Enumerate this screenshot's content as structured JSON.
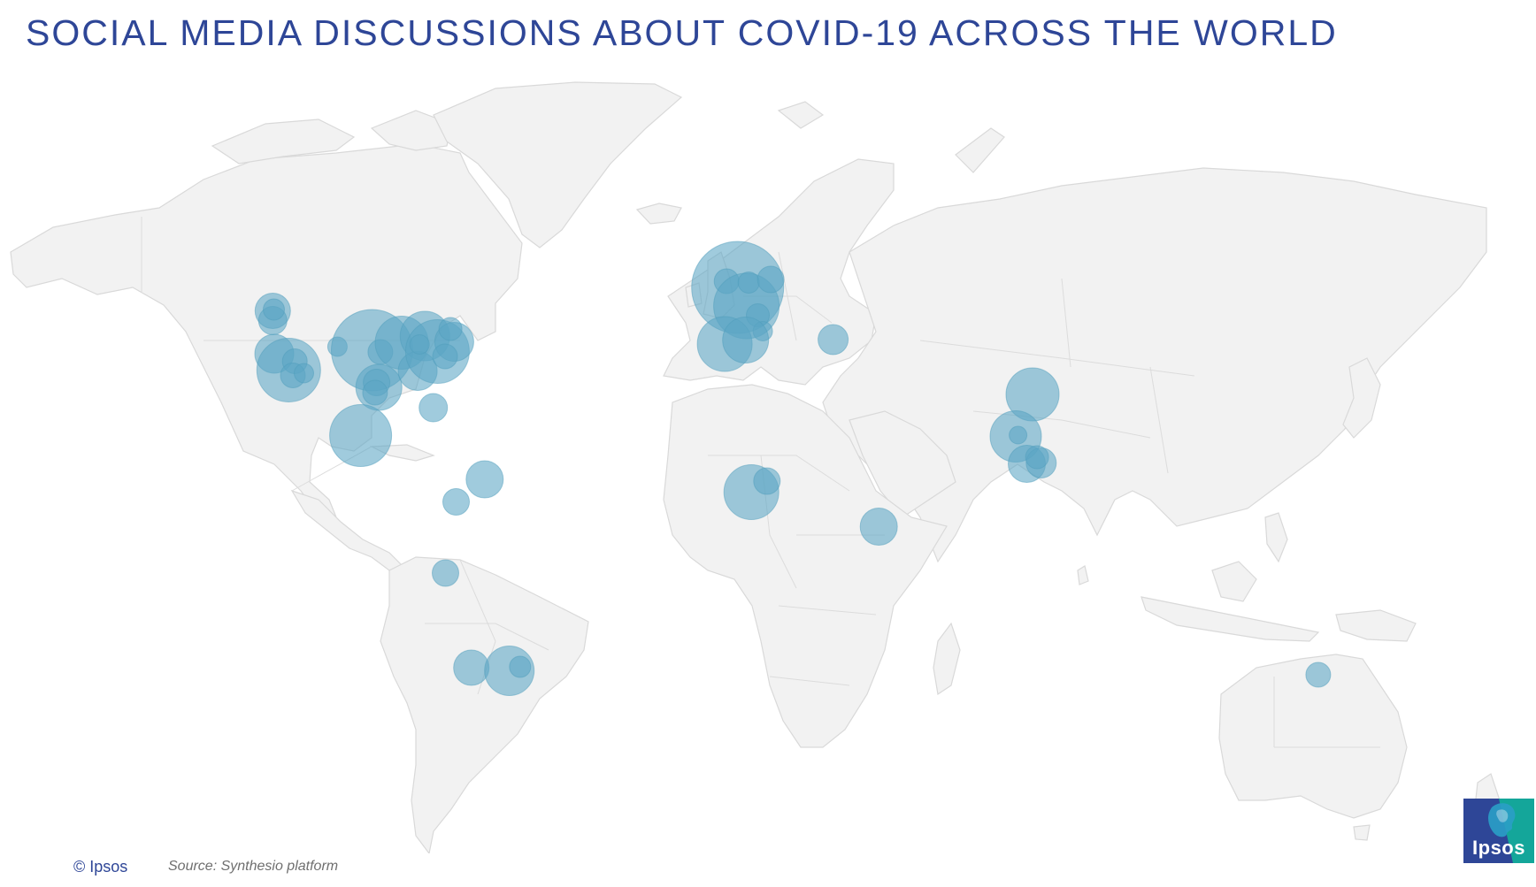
{
  "title": "SOCIAL MEDIA DISCUSSIONS ABOUT COVID-19 ACROSS THE WORLD",
  "footer": {
    "copyright": "© Ipsos",
    "source": "Source: Synthesio platform"
  },
  "logo": {
    "text": "Ipsos",
    "icon": "ipsos-head-icon"
  },
  "colors": {
    "title": "#2e4697",
    "land": "#f2f2f2",
    "bubble": "#5ba6c4",
    "logo_blue": "#2e4697",
    "logo_teal": "#14a69a"
  },
  "legend": "none",
  "bubbles": [
    {
      "region": "usa-pacific-northwest",
      "lon": -122.5,
      "lat": 47.5,
      "size": 20
    },
    {
      "region": "usa-oregon",
      "lon": -122.5,
      "lat": 45.3,
      "size": 16
    },
    {
      "region": "usa-washington",
      "lon": -122.2,
      "lat": 47.8,
      "size": 12
    },
    {
      "region": "usa-san-francisco",
      "lon": -122.1,
      "lat": 37.8,
      "size": 22
    },
    {
      "region": "usa-los-angeles",
      "lon": -118.3,
      "lat": 34.1,
      "size": 36
    },
    {
      "region": "usa-las-vegas",
      "lon": -116.7,
      "lat": 36.1,
      "size": 14
    },
    {
      "region": "usa-san-diego",
      "lon": -117.2,
      "lat": 32.9,
      "size": 14
    },
    {
      "region": "usa-arizona",
      "lon": -114.3,
      "lat": 33.4,
      "size": 11
    },
    {
      "region": "usa-colorado",
      "lon": -105.5,
      "lat": 39.4,
      "size": 11
    },
    {
      "region": "usa-central",
      "lon": -96.4,
      "lat": 38.6,
      "size": 46
    },
    {
      "region": "usa-kansas",
      "lon": -94.2,
      "lat": 38.2,
      "size": 14
    },
    {
      "region": "usa-texas",
      "lon": -94.6,
      "lat": 30.2,
      "size": 26
    },
    {
      "region": "usa-texas-north",
      "lon": -95.2,
      "lat": 31.3,
      "size": 15
    },
    {
      "region": "usa-houston",
      "lon": -95.6,
      "lat": 29.0,
      "size": 14
    },
    {
      "region": "usa-midwest",
      "lon": -88.6,
      "lat": 40.3,
      "size": 30
    },
    {
      "region": "usa-great-lakes",
      "lon": -82.5,
      "lat": 41.8,
      "size": 28
    },
    {
      "region": "usa-southeast",
      "lon": -84.4,
      "lat": 33.9,
      "size": 22
    },
    {
      "region": "usa-east",
      "lon": -79.2,
      "lat": 38.3,
      "size": 36
    },
    {
      "region": "usa-new-york",
      "lon": -74.8,
      "lat": 40.5,
      "size": 22
    },
    {
      "region": "usa-boston",
      "lon": -75.8,
      "lat": 43.4,
      "size": 13
    },
    {
      "region": "usa-virginia",
      "lon": -77.2,
      "lat": 37.2,
      "size": 14
    },
    {
      "region": "usa-michigan",
      "lon": -83.9,
      "lat": 39.9,
      "size": 11
    },
    {
      "region": "usa-florida",
      "lon": -80.3,
      "lat": 25.6,
      "size": 16
    },
    {
      "region": "mexico",
      "lon": -99.4,
      "lat": 19.3,
      "size": 35
    },
    {
      "region": "venezuela",
      "lon": -66.8,
      "lat": 9.4,
      "size": 21
    },
    {
      "region": "colombia",
      "lon": -74.3,
      "lat": 4.3,
      "size": 15
    },
    {
      "region": "peru",
      "lon": -77.1,
      "lat": -11.8,
      "size": 15
    },
    {
      "region": "chile",
      "lon": -70.3,
      "lat": -33.2,
      "size": 20
    },
    {
      "region": "argentina",
      "lon": -60.3,
      "lat": -33.9,
      "size": 28
    },
    {
      "region": "argentina-buenos-aires",
      "lon": -57.5,
      "lat": -33.0,
      "size": 12
    },
    {
      "region": "uk",
      "lon": -0.3,
      "lat": 52.8,
      "size": 52
    },
    {
      "region": "uk-ireland",
      "lon": -3.2,
      "lat": 54.2,
      "size": 14
    },
    {
      "region": "france",
      "lon": 2.0,
      "lat": 48.6,
      "size": 37
    },
    {
      "region": "belgium",
      "lon": 2.6,
      "lat": 53.9,
      "size": 12
    },
    {
      "region": "germany",
      "lon": 8.4,
      "lat": 54.6,
      "size": 15
    },
    {
      "region": "switzerland",
      "lon": 5.0,
      "lat": 46.5,
      "size": 13
    },
    {
      "region": "italy",
      "lon": 6.3,
      "lat": 42.9,
      "size": 11
    },
    {
      "region": "spain",
      "lon": -3.7,
      "lat": 40.0,
      "size": 31
    },
    {
      "region": "spain-east",
      "lon": 1.8,
      "lat": 40.9,
      "size": 26
    },
    {
      "region": "turkey",
      "lon": 24.8,
      "lat": 41.0,
      "size": 17
    },
    {
      "region": "nigeria",
      "lon": 3.3,
      "lat": 6.5,
      "size": 31
    },
    {
      "region": "nigeria-abuja",
      "lon": 7.4,
      "lat": 9.0,
      "size": 15
    },
    {
      "region": "kenya",
      "lon": 36.8,
      "lat": -1.3,
      "size": 21
    },
    {
      "region": "india-north",
      "lon": 77.2,
      "lat": 28.6,
      "size": 30
    },
    {
      "region": "india-mumbai",
      "lon": 72.8,
      "lat": 19.1,
      "size": 29
    },
    {
      "region": "india-pune",
      "lon": 73.4,
      "lat": 19.4,
      "size": 10
    },
    {
      "region": "india-bangalore",
      "lon": 75.7,
      "lat": 12.9,
      "size": 21
    },
    {
      "region": "india-chennai",
      "lon": 79.5,
      "lat": 13.1,
      "size": 17
    },
    {
      "region": "india-hyderabad",
      "lon": 78.4,
      "lat": 14.4,
      "size": 13
    },
    {
      "region": "australia-sydney",
      "lon": 152.3,
      "lat": -34.8,
      "size": 14
    }
  ]
}
